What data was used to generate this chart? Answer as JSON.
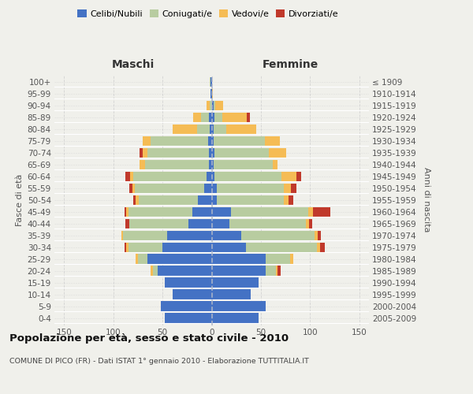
{
  "age_groups": [
    "100+",
    "95-99",
    "90-94",
    "85-89",
    "80-84",
    "75-79",
    "70-74",
    "65-69",
    "60-64",
    "55-59",
    "50-54",
    "45-49",
    "40-44",
    "35-39",
    "30-34",
    "25-29",
    "20-24",
    "15-19",
    "10-14",
    "5-9",
    "0-4"
  ],
  "birth_years": [
    "≤ 1909",
    "1910-1914",
    "1915-1919",
    "1920-1924",
    "1925-1929",
    "1930-1934",
    "1935-1939",
    "1940-1944",
    "1945-1949",
    "1950-1954",
    "1955-1959",
    "1960-1964",
    "1965-1969",
    "1970-1974",
    "1975-1979",
    "1980-1984",
    "1985-1989",
    "1990-1994",
    "1995-1999",
    "2000-2004",
    "2005-2009"
  ],
  "male": {
    "celibi": [
      1,
      1,
      0,
      3,
      2,
      4,
      3,
      3,
      5,
      8,
      14,
      20,
      24,
      45,
      50,
      65,
      55,
      48,
      40,
      52,
      48
    ],
    "coniugati": [
      1,
      0,
      2,
      8,
      13,
      58,
      62,
      65,
      75,
      70,
      60,
      65,
      60,
      45,
      35,
      10,
      5,
      0,
      0,
      0,
      0
    ],
    "vedovi": [
      0,
      0,
      3,
      8,
      25,
      8,
      5,
      5,
      3,
      3,
      3,
      2,
      0,
      2,
      2,
      2,
      2,
      0,
      0,
      0,
      0
    ],
    "divorziati": [
      0,
      0,
      0,
      0,
      0,
      0,
      3,
      0,
      5,
      3,
      3,
      2,
      4,
      0,
      2,
      0,
      0,
      0,
      0,
      0,
      0
    ]
  },
  "female": {
    "nubili": [
      0,
      0,
      2,
      3,
      2,
      2,
      3,
      2,
      3,
      5,
      5,
      20,
      18,
      30,
      35,
      55,
      55,
      48,
      40,
      55,
      48
    ],
    "coniugate": [
      0,
      0,
      2,
      8,
      13,
      52,
      55,
      60,
      68,
      68,
      68,
      78,
      78,
      75,
      72,
      25,
      10,
      0,
      0,
      0,
      0
    ],
    "vedove": [
      0,
      1,
      8,
      25,
      30,
      15,
      18,
      5,
      15,
      8,
      5,
      5,
      3,
      3,
      3,
      3,
      2,
      0,
      0,
      0,
      0
    ],
    "divorziate": [
      0,
      0,
      0,
      3,
      0,
      0,
      0,
      0,
      5,
      5,
      5,
      18,
      3,
      3,
      5,
      0,
      3,
      0,
      0,
      0,
      0
    ]
  },
  "colors": {
    "celibi": "#4472c4",
    "coniugati": "#b8cca0",
    "vedovi": "#f5bc55",
    "divorziati": "#c0392b"
  },
  "legend_labels": [
    "Celibi/Nubili",
    "Coniugati/e",
    "Vedovi/e",
    "Divorziati/e"
  ],
  "title": "Popolazione per età, sesso e stato civile - 2010",
  "subtitle": "COMUNE DI PICO (FR) - Dati ISTAT 1° gennaio 2010 - Elaborazione TUTTITALIA.IT",
  "ylabel_left": "Fasce di età",
  "ylabel_right": "Anni di nascita",
  "xlabel_left": "Maschi",
  "xlabel_right": "Femmine",
  "bg_color": "#f0f0eb",
  "grid_color": "#cccccc"
}
